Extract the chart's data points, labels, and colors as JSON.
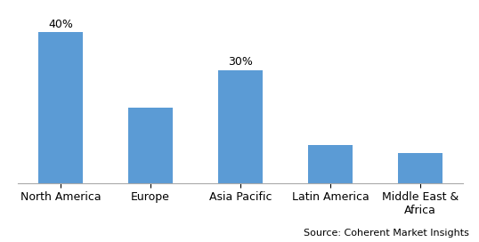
{
  "categories": [
    "North America",
    "Europe",
    "Asia Pacific",
    "Latin America",
    "Middle East &\nAfrica"
  ],
  "values": [
    40,
    20,
    30,
    10,
    8
  ],
  "bar_color": "#5B9BD5",
  "annotations": {
    "0": "40%",
    "2": "30%"
  },
  "source_text": "Source: Coherent Market Insights",
  "ylim": [
    0,
    45
  ],
  "background_color": "#ffffff",
  "label_fontsize": 9,
  "annotation_fontsize": 9,
  "source_fontsize": 8
}
